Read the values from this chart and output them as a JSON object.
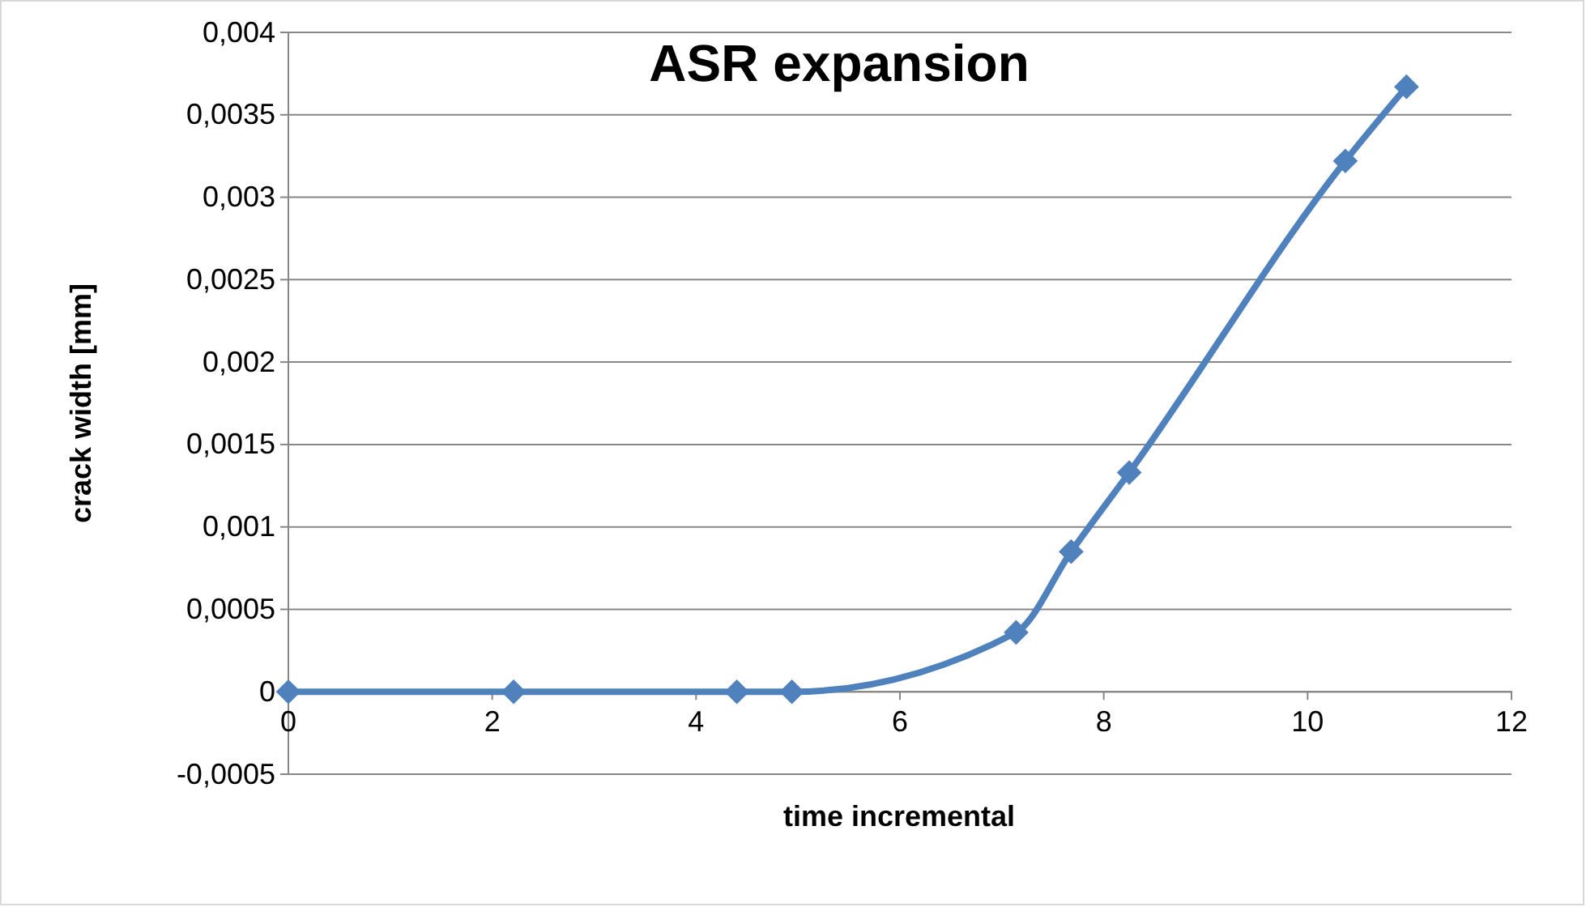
{
  "chart_data": {
    "type": "line",
    "title": "ASR expansion",
    "xlabel": "time incremental",
    "ylabel": "crack width [mm]",
    "x": [
      0,
      2.21,
      4.4,
      4.94,
      7.14,
      7.68,
      8.25,
      10.37,
      10.97
    ],
    "series": [
      {
        "color": "#4f81bd",
        "values": [
          0,
          0,
          0,
          0,
          0.00036,
          0.00085,
          0.00133,
          0.00322,
          0.00367
        ]
      }
    ],
    "xlim": [
      0,
      12
    ],
    "xticks": [
      0,
      2,
      4,
      6,
      8,
      10,
      12
    ],
    "ylim": [
      -0.0005,
      0.004
    ],
    "yticks": [
      {
        "value": -0.0005,
        "label": "-0,0005"
      },
      0,
      {
        "value": 0.0005,
        "label": "0,0005"
      },
      {
        "value": 0.001,
        "label": "0,001"
      },
      {
        "value": 0.0015,
        "label": "0,0015"
      },
      {
        "value": 0.002,
        "label": "0,002"
      },
      {
        "value": 0.0025,
        "label": "0,0025"
      },
      {
        "value": 0.003,
        "label": "0,003"
      },
      {
        "value": 0.0035,
        "label": "0,0035"
      },
      {
        "value": 0.004,
        "label": "0,004"
      }
    ],
    "grid": "y",
    "marker": "diamond",
    "line_style": "solid"
  }
}
